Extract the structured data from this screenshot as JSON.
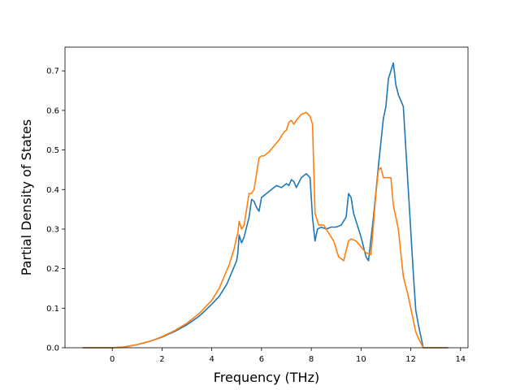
{
  "chart_data": {
    "type": "line",
    "xlabel": "Frequency (THz)",
    "ylabel": "Partial Density of States",
    "xlim": [
      -1.9,
      14.3
    ],
    "ylim": [
      0.0,
      0.76
    ],
    "xticks": [
      0,
      2,
      4,
      6,
      8,
      10,
      12,
      14
    ],
    "yticks": [
      0.0,
      0.1,
      0.2,
      0.3,
      0.4,
      0.5,
      0.6,
      0.7
    ],
    "grid": false,
    "legend": "none",
    "series": [
      {
        "color": "#1f77b4",
        "x": [
          -1.2,
          -0.5,
          0,
          0.5,
          1,
          1.5,
          2,
          2.5,
          3,
          3.5,
          4,
          4.3,
          4.6,
          4.8,
          5.0,
          5.05,
          5.1,
          5.2,
          5.3,
          5.5,
          5.6,
          5.7,
          5.8,
          5.9,
          6.0,
          6.1,
          6.2,
          6.4,
          6.6,
          6.8,
          7.0,
          7.1,
          7.2,
          7.3,
          7.4,
          7.6,
          7.8,
          7.95,
          8.05,
          8.15,
          8.25,
          8.4,
          8.6,
          8.8,
          9.0,
          9.2,
          9.4,
          9.5,
          9.6,
          9.7,
          9.8,
          10.0,
          10.2,
          10.3,
          10.5,
          10.7,
          10.9,
          11.0,
          11.1,
          11.2,
          11.3,
          11.4,
          11.5,
          11.7,
          11.9,
          12.1,
          12.2,
          12.3,
          12.5,
          13.0,
          13.5
        ],
        "y": [
          0.0,
          0.0,
          0.0,
          0.002,
          0.008,
          0.016,
          0.027,
          0.041,
          0.058,
          0.08,
          0.11,
          0.13,
          0.16,
          0.19,
          0.22,
          0.24,
          0.285,
          0.265,
          0.28,
          0.33,
          0.375,
          0.37,
          0.355,
          0.345,
          0.38,
          0.385,
          0.39,
          0.4,
          0.41,
          0.405,
          0.415,
          0.41,
          0.425,
          0.42,
          0.405,
          0.43,
          0.44,
          0.43,
          0.33,
          0.27,
          0.3,
          0.305,
          0.3,
          0.305,
          0.305,
          0.31,
          0.33,
          0.39,
          0.38,
          0.34,
          0.32,
          0.28,
          0.23,
          0.22,
          0.33,
          0.46,
          0.58,
          0.61,
          0.68,
          0.7,
          0.72,
          0.665,
          0.64,
          0.61,
          0.4,
          0.19,
          0.095,
          0.06,
          0.0,
          0.0,
          0.0
        ]
      },
      {
        "color": "#ff7f0e",
        "x": [
          -1.2,
          -0.5,
          0,
          0.5,
          1,
          1.5,
          2,
          2.5,
          3,
          3.5,
          4,
          4.3,
          4.5,
          4.7,
          4.9,
          5.0,
          5.05,
          5.1,
          5.2,
          5.3,
          5.4,
          5.5,
          5.6,
          5.7,
          5.8,
          5.9,
          6.0,
          6.1,
          6.3,
          6.5,
          6.7,
          6.9,
          7.0,
          7.1,
          7.2,
          7.3,
          7.4,
          7.6,
          7.8,
          7.95,
          8.05,
          8.15,
          8.3,
          8.5,
          8.7,
          8.9,
          9.1,
          9.3,
          9.5,
          9.6,
          9.8,
          10.0,
          10.2,
          10.4,
          10.6,
          10.7,
          10.8,
          10.9,
          11.0,
          11.1,
          11.2,
          11.3,
          11.5,
          11.7,
          11.9,
          12.1,
          12.2,
          12.3,
          12.5,
          13.0,
          13.5
        ],
        "y": [
          0.0,
          0.0,
          0.0,
          0.002,
          0.008,
          0.016,
          0.028,
          0.043,
          0.062,
          0.087,
          0.12,
          0.15,
          0.18,
          0.21,
          0.25,
          0.28,
          0.29,
          0.32,
          0.3,
          0.31,
          0.35,
          0.39,
          0.39,
          0.4,
          0.44,
          0.48,
          0.485,
          0.485,
          0.495,
          0.51,
          0.525,
          0.545,
          0.55,
          0.57,
          0.575,
          0.565,
          0.575,
          0.59,
          0.595,
          0.585,
          0.565,
          0.34,
          0.31,
          0.31,
          0.29,
          0.27,
          0.23,
          0.22,
          0.27,
          0.275,
          0.27,
          0.255,
          0.24,
          0.235,
          0.39,
          0.45,
          0.455,
          0.43,
          0.43,
          0.43,
          0.43,
          0.36,
          0.3,
          0.18,
          0.13,
          0.07,
          0.04,
          0.025,
          0.0,
          0.0,
          0.0
        ]
      }
    ]
  }
}
